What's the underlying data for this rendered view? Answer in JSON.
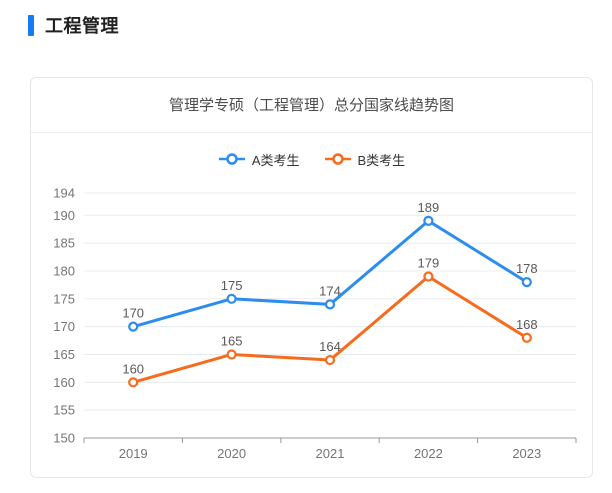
{
  "header": {
    "section_title": "工程管理"
  },
  "card": {
    "title": "管理学专硕（工程管理）总分国家线趋势图"
  },
  "colors": {
    "accent_blue": "#157af6",
    "series_a_blue": "#2d8cf0",
    "series_b_orange": "#f76b1c",
    "gridline": "#e8ecef",
    "axis_line": "#999999",
    "footer_band": "#eceef0"
  },
  "chart_data": {
    "type": "line",
    "title": "管理学专硕（工程管理）总分国家线趋势图",
    "categories": [
      "2019",
      "2020",
      "2021",
      "2022",
      "2023"
    ],
    "series": [
      {
        "name": "A类考生",
        "color": "#2d8cf0",
        "values": [
          170,
          175,
          174,
          189,
          178
        ]
      },
      {
        "name": "B类考生",
        "color": "#f76b1c",
        "values": [
          160,
          165,
          164,
          179,
          168
        ]
      }
    ],
    "xlabel": "",
    "ylabel": "",
    "ylim": [
      150,
      194
    ],
    "y_ticks": [
      150,
      155,
      160,
      165,
      170,
      175,
      180,
      185,
      190,
      194
    ],
    "grid": true,
    "boundary_gap": true,
    "data_labels": true,
    "legend_position": "top"
  }
}
